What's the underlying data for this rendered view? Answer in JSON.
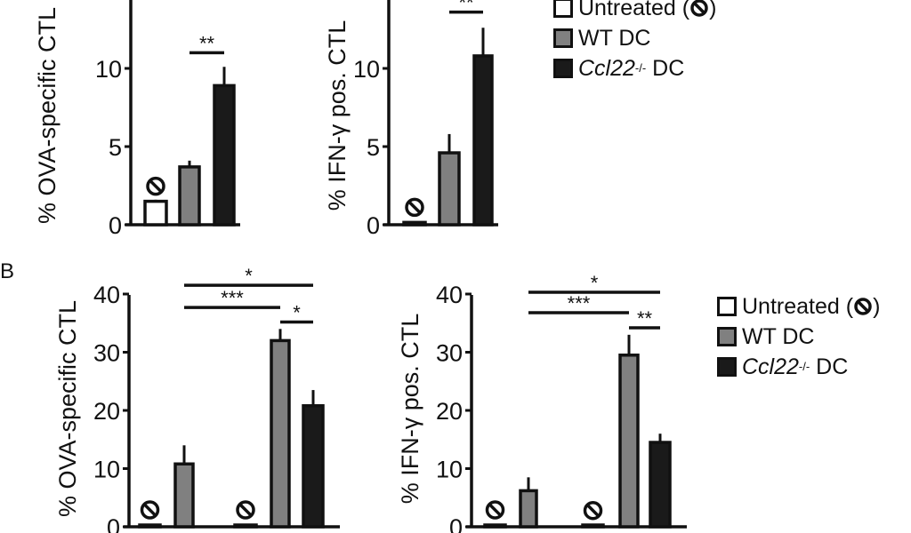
{
  "panels": {
    "b_letter": "B"
  },
  "legend": {
    "untreated": "Untreated (",
    "untreated_close": ")",
    "wt": "WT DC",
    "ko_gene": "Ccl22",
    "ko_sup": "-/-",
    "ko_suffix": " DC",
    "colors": {
      "untreated": "#ffffff",
      "wt": "#808080",
      "ko": "#1a1a1a"
    }
  },
  "chart_data": [
    {
      "type": "bar",
      "panel": "A-left",
      "ylabel": "% OVA-specific CTL",
      "ylim": [
        0,
        15
      ],
      "yticks": [
        "0",
        "5",
        "10"
      ],
      "categories": [
        "Untreated",
        "WT DC",
        "Ccl22-/- DC"
      ],
      "values": [
        1.5,
        3.7,
        8.9
      ],
      "errors": [
        0.1,
        0.4,
        1.2
      ],
      "untreated_marker": [
        0
      ],
      "significance": [
        {
          "from": 1,
          "to": 2,
          "label": "**",
          "level": 11
        }
      ]
    },
    {
      "type": "bar",
      "panel": "A-right",
      "ylabel": "% IFN-γ pos. CTL",
      "ylim": [
        0,
        15
      ],
      "yticks": [
        "0",
        "5",
        "10"
      ],
      "categories": [
        "Untreated",
        "WT DC",
        "Ccl22-/- DC"
      ],
      "values": [
        0.15,
        4.6,
        10.8
      ],
      "errors": [
        0,
        1.2,
        1.8
      ],
      "untreated_marker": [
        0
      ],
      "significance": [
        {
          "from": 1,
          "to": 2,
          "label": "**",
          "level": 13.6
        }
      ]
    },
    {
      "type": "bar",
      "panel": "B-left",
      "ylabel": "% OVA-specific CTL",
      "ylim": [
        0,
        40
      ],
      "yticks": [
        "0",
        "10",
        "20",
        "30",
        "40"
      ],
      "categories": [
        "Untreated",
        "WT DC",
        "Untreated",
        "WT DC",
        "Ccl22-/- DC"
      ],
      "values": [
        0.3,
        10.8,
        0.3,
        32,
        20.8
      ],
      "errors": [
        0,
        3.2,
        0,
        2.0,
        2.7
      ],
      "untreated_marker": [
        0,
        2
      ],
      "significance": [
        {
          "from": 1,
          "to": 4,
          "label": "*",
          "level": 41.5
        },
        {
          "from": 1,
          "to": 3,
          "label": "***",
          "level": 37.7
        },
        {
          "from": 3,
          "to": 4,
          "label": "*",
          "level": 35.2
        }
      ]
    },
    {
      "type": "bar",
      "panel": "B-right",
      "ylabel": "% IFN-γ pos. CTL",
      "ylim": [
        0,
        40
      ],
      "yticks": [
        "0",
        "10",
        "20",
        "30",
        "40"
      ],
      "categories": [
        "Untreated",
        "WT DC",
        "Untreated",
        "WT DC",
        "Ccl22-/- DC"
      ],
      "values": [
        0.3,
        6.2,
        0.2,
        29.5,
        14.5
      ],
      "errors": [
        0,
        2.3,
        0,
        3.5,
        1.5
      ],
      "untreated_marker": [
        0,
        2
      ],
      "significance": [
        {
          "from": 1,
          "to": 4,
          "label": "*",
          "level": 40.3
        },
        {
          "from": 1,
          "to": 3,
          "label": "***",
          "level": 36.8
        },
        {
          "from": 3,
          "to": 4,
          "label": "**",
          "level": 34.2
        }
      ]
    }
  ]
}
